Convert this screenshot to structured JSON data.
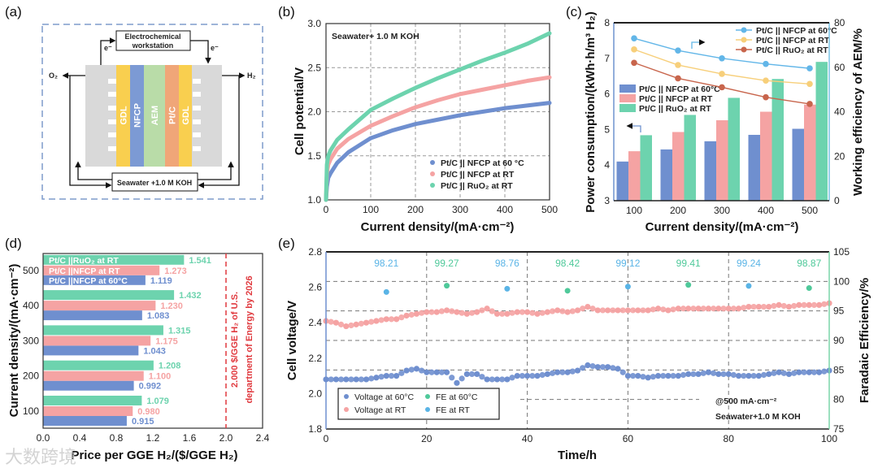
{
  "panel_labels": [
    "(a)",
    "(b)",
    "(c)",
    "(d)",
    "(e)"
  ],
  "watermark": "大数跨境",
  "diagram": {
    "workstation": [
      "Electrochemical",
      "workstation"
    ],
    "electron_left": "e⁻",
    "electron_right": "e⁻",
    "o2": "O₂",
    "h2": "H₂",
    "layers": [
      {
        "label": "GDL",
        "color": "#f9cf4f"
      },
      {
        "label": "NFCP",
        "color": "#7c9ad4"
      },
      {
        "label": "AEM",
        "color": "#b9dca8"
      },
      {
        "label": "Pt/C",
        "color": "#f0a678"
      },
      {
        "label": "GDL",
        "color": "#f9cf4f"
      }
    ],
    "electrolyte": "Seawater +1.0 M KOH"
  },
  "chart_data": [
    {
      "type": "line",
      "panel": "b",
      "annotation": "Seawater+ 1.0 M KOH",
      "xlabel": "Current density/(mA·cm⁻²)",
      "ylabel": "Cell potential/V",
      "xlim": [
        0,
        500
      ],
      "ylim": [
        1.0,
        3.0
      ],
      "xticklabels": [
        "0",
        "100",
        "200",
        "300",
        "400",
        "500"
      ],
      "yticklabels": [
        "1.0",
        "1.5",
        "2.0",
        "2.5",
        "3.0"
      ],
      "grid": true,
      "legend_position": "bottom-right",
      "x": [
        0,
        2,
        5,
        10,
        25,
        50,
        100,
        150,
        200,
        250,
        300,
        350,
        400,
        450,
        500
      ],
      "series": [
        {
          "name": "Pt/C || NFCP at 60 °C",
          "color": "#6f8fcf",
          "values": [
            1.0,
            1.15,
            1.25,
            1.3,
            1.42,
            1.54,
            1.7,
            1.79,
            1.86,
            1.91,
            1.96,
            2.0,
            2.04,
            2.07,
            2.1
          ]
        },
        {
          "name": "Pt/C || NFCP at RT",
          "color": "#f5a3a3",
          "values": [
            1.0,
            1.3,
            1.4,
            1.46,
            1.58,
            1.69,
            1.84,
            1.95,
            2.05,
            2.13,
            2.2,
            2.25,
            2.3,
            2.35,
            2.39
          ]
        },
        {
          "name": "Pt/C || RuO₂ at RT",
          "color": "#6dd3ae",
          "values": [
            1.0,
            1.4,
            1.5,
            1.56,
            1.68,
            1.8,
            2.02,
            2.15,
            2.27,
            2.38,
            2.48,
            2.58,
            2.67,
            2.77,
            2.89
          ]
        }
      ]
    },
    {
      "type": "bar+line",
      "panel": "c",
      "xlabel": "Current density/(mA·cm⁻²)",
      "ylabel": "Power consumption/(kWh·h/m³ H₂)",
      "ylabel_right": "Working efficiency of AEM/%",
      "categories": [
        "100",
        "200",
        "300",
        "400",
        "500"
      ],
      "ylim": [
        3,
        8
      ],
      "ylim_right": [
        0,
        80
      ],
      "yticklabels": [
        "3",
        "4",
        "5",
        "6",
        "7",
        "8"
      ],
      "yticklabels_right": [
        "0",
        "20",
        "40",
        "60",
        "80"
      ],
      "bar_series": [
        {
          "name": "Pt/C || NFCP at 60°C",
          "color": "#6f8fcf",
          "values": [
            4.1,
            4.44,
            4.67,
            4.85,
            5.02
          ]
        },
        {
          "name": "Pt/C || NFCP at RT",
          "color": "#f5a3a3",
          "values": [
            4.39,
            4.93,
            5.26,
            5.5,
            5.7
          ]
        },
        {
          "name": "Pt/C || RuO₂ at RT",
          "color": "#6dd3ae",
          "values": [
            4.84,
            5.41,
            5.89,
            6.42,
            6.9
          ]
        }
      ],
      "line_series": [
        {
          "name": "Pt/C || NFCP at 60°C",
          "color": "#62b6e8",
          "values": [
            73,
            67.5,
            64,
            61.5,
            59.5
          ]
        },
        {
          "name": "Pt/C || NFCP at RT",
          "color": "#f7cf7a",
          "values": [
            68,
            61,
            57,
            54,
            52.5
          ]
        },
        {
          "name": "Pt/C || RuO₂ at RT",
          "color": "#c8654c",
          "values": [
            62,
            55,
            51,
            46.5,
            43.5
          ]
        }
      ]
    },
    {
      "type": "bar",
      "orientation": "horizontal",
      "panel": "d",
      "xlabel": "Price per GGE H₂/($/GGE H₂)",
      "ylabel": "Current density/(mA·cm⁻²)",
      "categories": [
        "100",
        "200",
        "300",
        "400",
        "500"
      ],
      "xlim": [
        0,
        2.4
      ],
      "xticklabels": [
        "0.0",
        "0.4",
        "0.8",
        "1.2",
        "1.6",
        "2.0",
        "2.4"
      ],
      "series": [
        {
          "name": "Pt/C ||NFCP at 60°C",
          "color": "#6f8fcf",
          "values": [
            0.915,
            0.992,
            1.043,
            1.083,
            1.119
          ],
          "labels": [
            "0.915",
            "0.992",
            "1.043",
            "1.083",
            "1.119"
          ]
        },
        {
          "name": "Pt/C ||NFCP at RT",
          "color": "#f5a3a3",
          "values": [
            0.98,
            1.1,
            1.175,
            1.23,
            1.273
          ],
          "labels": [
            "0.980",
            "1.100",
            "1.175",
            "1.230",
            "1.273"
          ]
        },
        {
          "name": "Pt/C ||RuO₂ at RT",
          "color": "#6dd3ae",
          "values": [
            1.079,
            1.208,
            1.315,
            1.432,
            1.541
          ],
          "labels": [
            "1.079",
            "1.208",
            "1.315",
            "1.432",
            "1.541"
          ]
        }
      ],
      "reference_line": {
        "value": 2.0,
        "color": "#e0393e",
        "label": [
          "2.000 $/GGE H₂ of U.S.",
          "department of Energy by 2026"
        ]
      }
    },
    {
      "type": "scatter",
      "panel": "e",
      "xlabel": "Time/h",
      "ylabel": "Cell voltage/V",
      "ylabel_right": "Faradaic Efficiency/%",
      "xlim": [
        0,
        100
      ],
      "ylim": [
        1.8,
        2.8
      ],
      "ylim_right": [
        75,
        105
      ],
      "xticklabels": [
        "0",
        "20",
        "40",
        "60",
        "80",
        "100"
      ],
      "yticklabels": [
        "1.8",
        "2.0",
        "2.2",
        "2.4",
        "2.6",
        "2.8"
      ],
      "yticklabels_right": [
        "75",
        "80",
        "85",
        "90",
        "95",
        "100",
        "105"
      ],
      "annotation": [
        "@500 mA·cm⁻²",
        "Seawater+1.0 M KOH"
      ],
      "legend_position": "bottom-left",
      "x_step_h": 2,
      "voltage_series": [
        {
          "name": "Voltage at 60°C",
          "color": "#6f8fcf",
          "values": [
            2.08,
            2.08,
            2.08,
            2.08,
            2.08,
            2.09,
            2.1,
            2.1,
            2.13,
            2.14,
            2.12,
            2.12,
            2.12,
            2.06,
            2.11,
            2.11,
            2.08,
            2.08,
            2.08,
            2.1,
            2.1,
            2.1,
            2.11,
            2.12,
            2.12,
            2.13,
            2.16,
            2.15,
            2.15,
            2.14,
            2.1,
            2.1,
            2.09,
            2.1,
            2.1,
            2.1,
            2.11,
            2.11,
            2.12,
            2.11,
            2.11,
            2.1,
            2.1,
            2.1,
            2.11,
            2.12,
            2.11,
            2.12,
            2.12,
            2.12,
            2.13
          ]
        },
        {
          "name": "Voltage at RT",
          "color": "#f5a3a3",
          "values": [
            2.41,
            2.4,
            2.38,
            2.39,
            2.4,
            2.41,
            2.42,
            2.42,
            2.44,
            2.45,
            2.46,
            2.46,
            2.47,
            2.46,
            2.45,
            2.46,
            2.48,
            2.45,
            2.45,
            2.46,
            2.46,
            2.45,
            2.46,
            2.47,
            2.46,
            2.47,
            2.49,
            2.47,
            2.47,
            2.47,
            2.47,
            2.47,
            2.47,
            2.48,
            2.47,
            2.48,
            2.48,
            2.48,
            2.48,
            2.48,
            2.48,
            2.48,
            2.49,
            2.49,
            2.49,
            2.5,
            2.49,
            2.5,
            2.5,
            2.5,
            2.51
          ]
        }
      ],
      "fe_series": [
        {
          "name": "FE at 60°C",
          "color": "#4fc99a",
          "x": [
            24,
            48,
            72,
            96
          ],
          "values": [
            99.27,
            98.42,
            99.41,
            98.87
          ],
          "labels": [
            "99.27",
            "98.42",
            "99.41",
            "98.87"
          ]
        },
        {
          "name": "FE at RT",
          "color": "#5ab4e6",
          "x": [
            12,
            36,
            60,
            84
          ],
          "values": [
            98.21,
            98.76,
            99.12,
            99.24
          ],
          "labels": [
            "98.21",
            "98.76",
            "99.12",
            "99.24"
          ]
        }
      ]
    }
  ]
}
